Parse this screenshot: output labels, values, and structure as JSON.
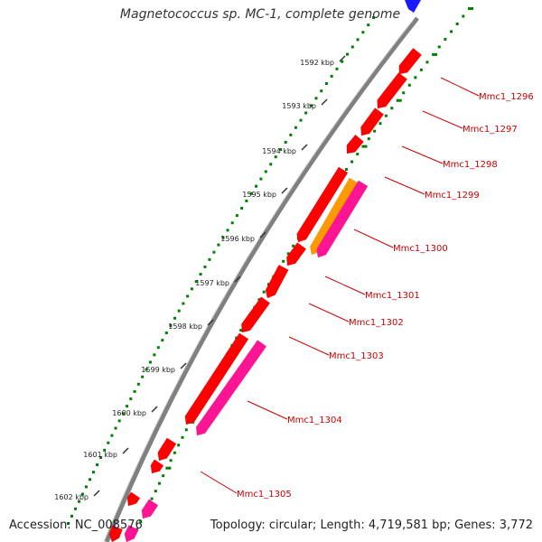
{
  "title": "Magnetococcus sp. MC-1, complete genome",
  "footer": {
    "accession": "Accession: NC_008576",
    "summary": "Topology: circular; Length: 4,719,581 bp; Genes: 3,772"
  },
  "colors": {
    "backbone": "#808080",
    "forward_gene": "#ff0000",
    "orange_feature": "#ff9900",
    "pink_feature": "#ff1493",
    "blue_feature": "#1a1aff",
    "dots": "#008000",
    "label": "#cc0000",
    "tick": "#333333"
  },
  "ticks": [
    "1592 kbp",
    "1593 kbp",
    "1594 kbp",
    "1595 kbp",
    "1596 kbp",
    "1597 kbp",
    "1598 kbp",
    "1599 kbp",
    "1600 kbp",
    "1601 kbp",
    "1602 kbp"
  ],
  "gene_labels": [
    "Mmc1_1296",
    "Mmc1_1297",
    "Mmc1_1298",
    "Mmc1_1299",
    "Mmc1_1300",
    "Mmc1_1301",
    "Mmc1_1302",
    "Mmc1_1303",
    "Mmc1_1304",
    "Mmc1_1305"
  ]
}
